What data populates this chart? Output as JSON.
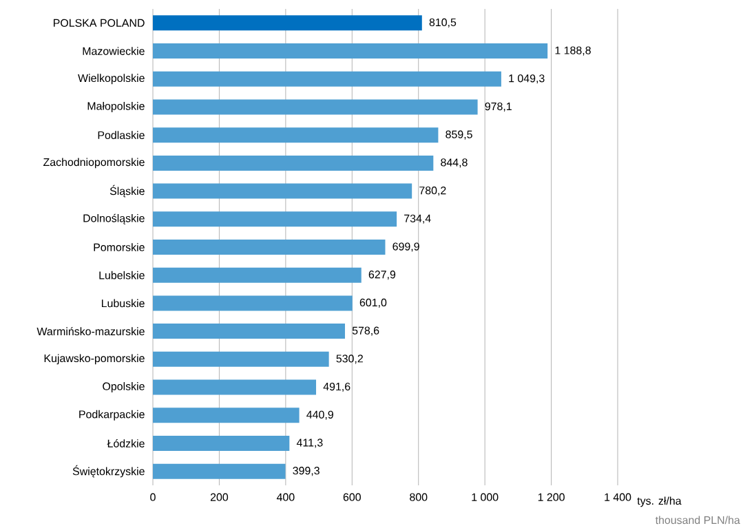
{
  "chart_data": {
    "type": "bar",
    "orientation": "horizontal",
    "categories": [
      "POLSKA POLAND",
      "Mazowieckie",
      "Wielkopolskie",
      "Małopolskie",
      "Podlaskie",
      "Zachodniopomorskie",
      "Śląskie",
      "Dolnośląskie",
      "Pomorskie",
      "Lubelskie",
      "Lubuskie",
      "Warmińsko-mazurskie",
      "Kujawsko-pomorskie",
      "Opolskie",
      "Podkarpackie",
      "Łódzkie",
      "Świętokrzyskie"
    ],
    "values": [
      810.5,
      1188.8,
      1049.3,
      978.1,
      859.5,
      844.8,
      780.2,
      734.4,
      699.9,
      627.9,
      601.0,
      578.6,
      530.2,
      491.6,
      440.9,
      411.3,
      399.3
    ],
    "value_labels": [
      "810,5",
      "1 188,8",
      "1 049,3",
      "978,1",
      "859,5",
      "844,8",
      "780,2",
      "734,4",
      "699,9",
      "627,9",
      "601,0",
      "578,6",
      "530,2",
      "491,6",
      "440,9",
      "411,3",
      "399,3"
    ],
    "colors": [
      "#0070c0",
      "#4f9fd2",
      "#4f9fd2",
      "#4f9fd2",
      "#4f9fd2",
      "#4f9fd2",
      "#4f9fd2",
      "#4f9fd2",
      "#4f9fd2",
      "#4f9fd2",
      "#4f9fd2",
      "#4f9fd2",
      "#4f9fd2",
      "#4f9fd2",
      "#4f9fd2",
      "#4f9fd2",
      "#4f9fd2"
    ],
    "xlim": [
      0,
      1400
    ],
    "xticks": [
      0,
      200,
      400,
      600,
      800,
      {
        "value": 1000,
        "label": "1 000"
      },
      {
        "value": 1200,
        "label": "1 200"
      },
      {
        "value": 1400,
        "label": "1 400"
      }
    ],
    "xlabel": "tys. zł/ha",
    "annotations": [
      "thousand PLN/ha"
    ],
    "grid": "x"
  }
}
